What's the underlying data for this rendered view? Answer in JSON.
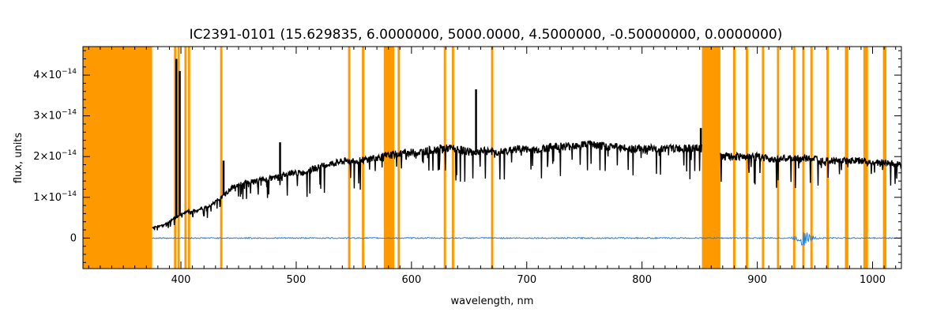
{
  "chart_data": {
    "type": "line",
    "title": "IC2391-0101    (15.629835, 6.0000000, 5000.0000, 4.5000000, -0.50000000, 0.0000000)",
    "xlabel": "wavelength, nm",
    "ylabel": "flux, units",
    "xlim": [
      315,
      1025
    ],
    "ylim": [
      -7.5e-15,
      4.7e-14
    ],
    "xticks": [
      {
        "value": 400,
        "label": "400"
      },
      {
        "value": 500,
        "label": "500"
      },
      {
        "value": 600,
        "label": "600"
      },
      {
        "value": 700,
        "label": "700"
      },
      {
        "value": 800,
        "label": "800"
      },
      {
        "value": 900,
        "label": "900"
      },
      {
        "value": 1000,
        "label": "1000"
      }
    ],
    "yticks": [
      {
        "value": 0,
        "label": "0",
        "exp": ""
      },
      {
        "value": 1e-14,
        "label": "1×10",
        "exp": "−14"
      },
      {
        "value": 2e-14,
        "label": "2×10",
        "exp": "−14"
      },
      {
        "value": 3e-14,
        "label": "3×10",
        "exp": "−14"
      },
      {
        "value": 4e-14,
        "label": "4×10",
        "exp": "−14"
      }
    ],
    "masked_regions": [
      [
        315,
        375
      ],
      [
        394,
        396
      ],
      [
        397,
        399
      ],
      [
        403,
        405
      ],
      [
        406,
        408
      ],
      [
        434,
        436
      ],
      [
        545,
        547
      ],
      [
        557,
        559
      ],
      [
        576,
        585
      ],
      [
        588,
        590
      ],
      [
        628,
        630
      ],
      [
        635,
        637
      ],
      [
        669,
        671
      ],
      [
        852,
        868
      ],
      [
        879,
        881
      ],
      [
        890,
        892
      ],
      [
        904,
        906
      ],
      [
        917,
        919
      ],
      [
        931,
        933
      ],
      [
        939,
        941
      ],
      [
        946,
        948
      ],
      [
        960,
        962
      ],
      [
        976,
        979
      ],
      [
        992,
        996
      ],
      [
        1009,
        1012
      ]
    ],
    "series": [
      {
        "color": "#000000",
        "x": [
          375,
          385,
          395,
          405,
          415,
          425,
          435,
          445,
          455,
          465,
          475,
          485,
          495,
          505,
          515,
          525,
          535,
          545,
          555,
          565,
          575,
          585,
          595,
          605,
          615,
          625,
          635,
          645,
          655,
          665,
          675,
          685,
          695,
          705,
          715,
          725,
          735,
          745,
          755,
          765,
          775,
          785,
          795,
          805,
          815,
          825,
          835,
          845,
          852,
          868,
          880,
          890,
          900,
          910,
          920,
          930,
          940,
          950,
          960,
          970,
          980,
          990,
          1000,
          1010,
          1025
        ],
        "y": [
          2.6e-15,
          3.2e-15,
          5e-15,
          6.5e-15,
          7e-15,
          8e-15,
          1e-14,
          1.25e-14,
          1.35e-14,
          1.4e-14,
          1.45e-14,
          1.5e-14,
          1.6e-14,
          1.6e-14,
          1.7e-14,
          1.8e-14,
          1.85e-14,
          1.9e-14,
          1.9e-14,
          1.95e-14,
          2e-14,
          2.05e-14,
          2.1e-14,
          2.1e-14,
          2.15e-14,
          2.2e-14,
          2.2e-14,
          2.15e-14,
          2.1e-14,
          2.15e-14,
          2.1e-14,
          2.15e-14,
          2.2e-14,
          2.15e-14,
          2.2e-14,
          2.25e-14,
          2.25e-14,
          2.3e-14,
          2.3e-14,
          2.25e-14,
          2.25e-14,
          2.2e-14,
          2.2e-14,
          2.2e-14,
          2.2e-14,
          2.2e-14,
          2.2e-14,
          2.2e-14,
          2.2e-14,
          2e-14,
          2e-14,
          2e-14,
          2e-14,
          1.95e-14,
          1.95e-14,
          1.95e-14,
          1.95e-14,
          1.95e-14,
          1.9e-14,
          1.9e-14,
          1.9e-14,
          1.9e-14,
          1.85e-14,
          1.85e-14,
          1.8e-14
        ]
      },
      {
        "color": "#1f7fe0",
        "x": [
          375,
          1025
        ],
        "y": [
          0,
          0
        ]
      }
    ],
    "spikes": [
      {
        "x": 396,
        "y": 4.4e-14
      },
      {
        "x": 399,
        "y": 4.1e-14
      },
      {
        "x": 437,
        "y": 1.9e-14
      },
      {
        "x": 486,
        "y": 2.35e-14
      },
      {
        "x": 656,
        "y": 3.65e-14
      },
      {
        "x": 851,
        "y": 2.7e-14
      }
    ]
  }
}
